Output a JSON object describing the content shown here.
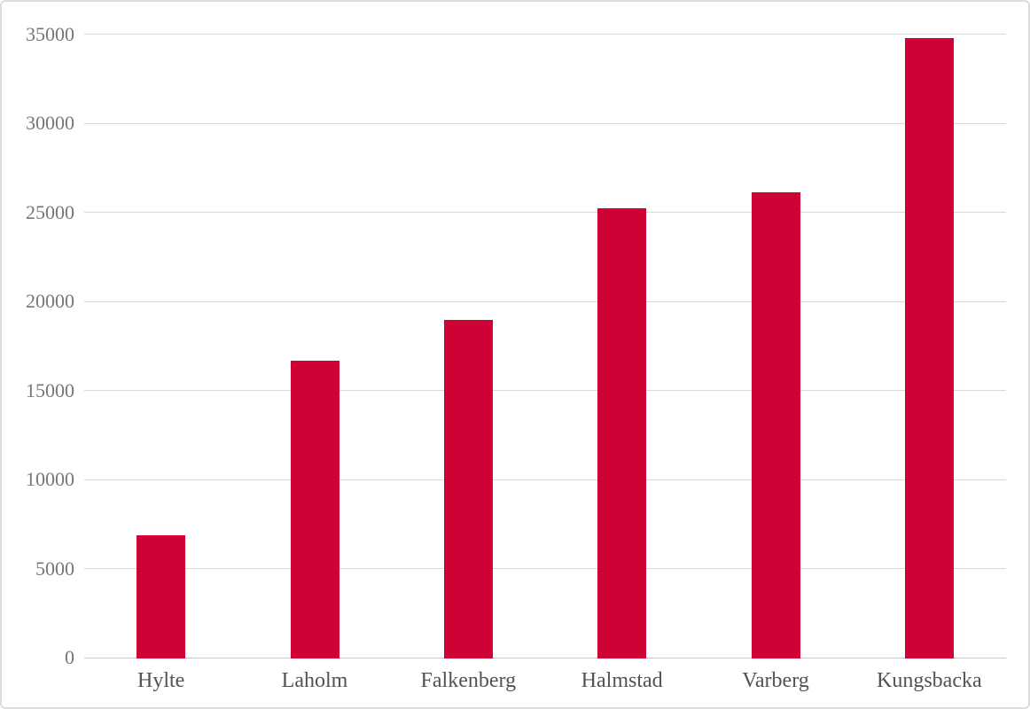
{
  "chart_data": {
    "type": "bar",
    "title": "",
    "xlabel": "",
    "ylabel": "",
    "categories": [
      "Hylte",
      "Laholm",
      "Falkenberg",
      "Halmstad",
      "Varberg",
      "Kungsbacka"
    ],
    "values": [
      6900,
      16700,
      19000,
      25300,
      26200,
      34850
    ],
    "ylim": [
      0,
      35000
    ],
    "ytick_step": 5000,
    "ytick_labels": [
      "0",
      "5000",
      "10000",
      "15000",
      "20000",
      "25000",
      "30000",
      "35000"
    ],
    "grid": "horizontal-only",
    "legend": "none",
    "colors": {
      "bar": "#ce0234",
      "gridline": "#d9d9d9",
      "axis_line": "#c9c9c9",
      "ytick_label": "#767676",
      "category_label": "#525252",
      "background": "#ffffff",
      "frame_border": "#dcdcdc"
    }
  }
}
